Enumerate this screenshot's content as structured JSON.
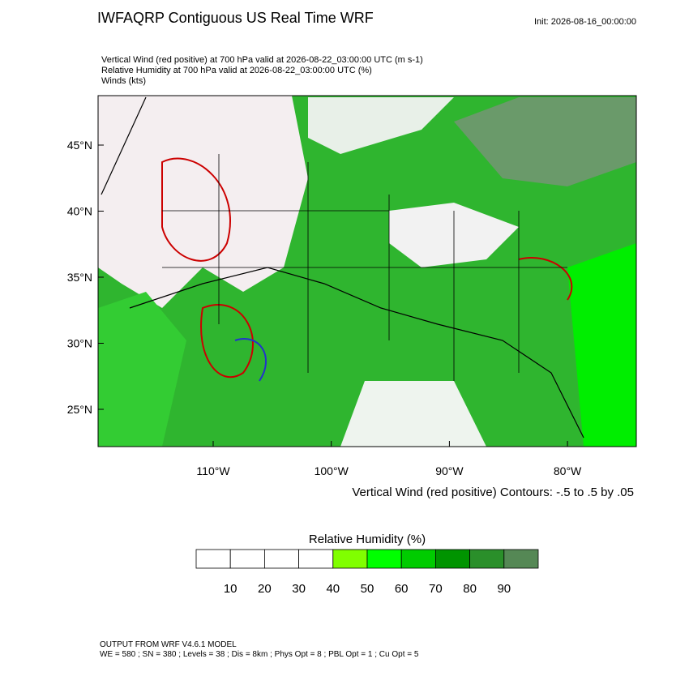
{
  "header": {
    "title": "IWFAQRP Contiguous US Real Time WRF",
    "init": "Init: 2026-08-16_00:00:00",
    "lines": [
      "Vertical Wind (red positive) at 700 hPa valid at 2026-08-22_03:00:00 UTC   (m s-1)",
      "Relative Humidity at 700 hPa valid at 2026-08-22_03:00:00 UTC   (%)",
      "Winds   (kts)"
    ]
  },
  "map": {
    "lat_ticks": [
      {
        "value": 45,
        "label": "45°N"
      },
      {
        "value": 40,
        "label": "40°N"
      },
      {
        "value": 35,
        "label": "35°N"
      },
      {
        "value": 30,
        "label": "30°N"
      },
      {
        "value": 25,
        "label": "25°N"
      }
    ],
    "lon_ticks": [
      {
        "value": -110,
        "label": "110°W"
      },
      {
        "value": -100,
        "label": "100°W"
      },
      {
        "value": -90,
        "label": "90°W"
      },
      {
        "value": -80,
        "label": "80°W"
      }
    ],
    "contour_note": "Vertical Wind (red positive) Contours: -.5 to .5 by .05"
  },
  "colorbar": {
    "title": "Relative Humidity  (%)",
    "colors": [
      "#ffffff",
      "#ffffff",
      "#ffffff",
      "#ffffff",
      "#80ff00",
      "#00ff00",
      "#00cc00",
      "#009400",
      "#2a8f2a",
      "#558855"
    ],
    "levels": [
      10,
      20,
      30,
      40,
      50,
      60,
      70,
      80,
      90
    ]
  },
  "footer": [
    "OUTPUT FROM WRF V4.6.1 MODEL",
    "WE = 580 ; SN = 380 ; Levels = 38 ; Dis = 8km ; Phys Opt = 8 ; PBL Opt = 1 ; Cu Opt = 5"
  ]
}
